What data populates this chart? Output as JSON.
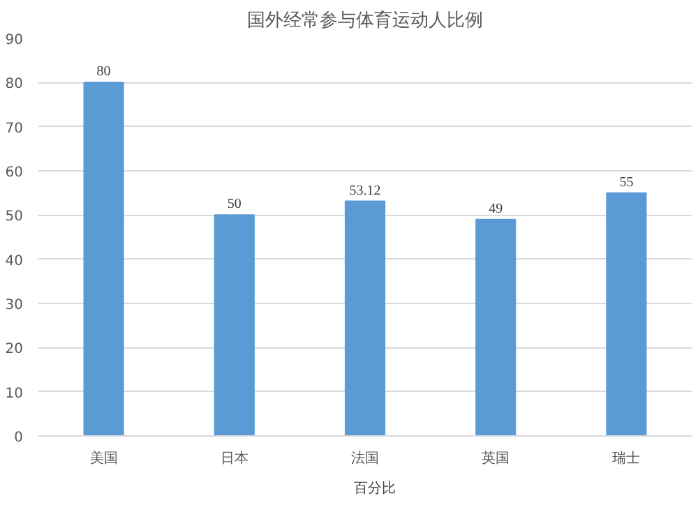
{
  "chart_data": {
    "type": "bar",
    "title": "国外经常参与体育运动人比例",
    "categories": [
      "美国",
      "日本",
      "法国",
      "英国",
      "瑞士"
    ],
    "series": [
      {
        "name": "百分比",
        "color": "#5b9bd5",
        "values": [
          80,
          50,
          53.12,
          49,
          55
        ]
      }
    ],
    "ylim": [
      0,
      90
    ],
    "yticks": [
      0,
      10,
      20,
      30,
      40,
      50,
      60,
      70,
      80,
      90
    ],
    "grid": "y",
    "legend": "bottom",
    "data_labels": true
  }
}
